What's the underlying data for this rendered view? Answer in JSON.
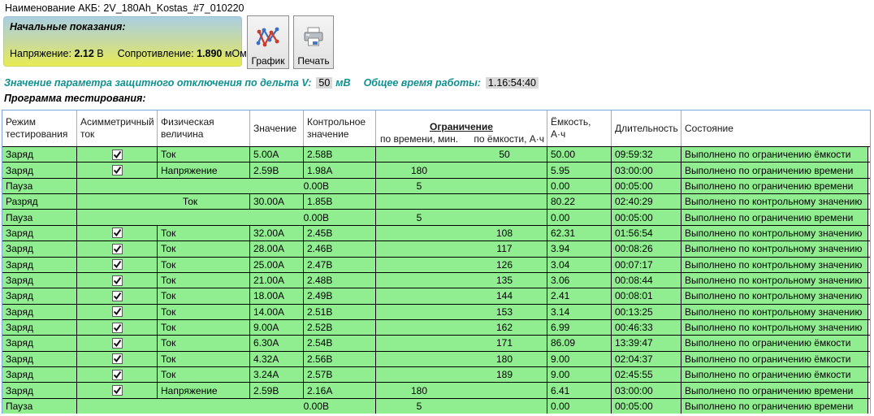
{
  "header": {
    "battery_label": "Наименование АКБ:",
    "battery_name": "2V_180Ah_Kostas_#7_010220"
  },
  "initial_panel": {
    "title": "Начальные показания:",
    "voltage_label": "Напряжение:",
    "voltage_value": "2.12",
    "voltage_unit": "В",
    "resistance_label": "Сопротивление:",
    "resistance_value": "1.890",
    "resistance_unit": "мОм"
  },
  "toolbar": {
    "graph_label": "График",
    "print_label": "Печать"
  },
  "params": {
    "delta_label": "Значение параметра защитного отключения по дельта V:",
    "delta_value": "50",
    "delta_unit": "мВ",
    "total_time_label": "Общее время работы:",
    "total_time_value": "1.16:54:40"
  },
  "program": {
    "title": "Программа тестирования:",
    "columns": {
      "mode": "Режим тестирования",
      "asym": "Асимметричный ток",
      "phys": "Физическая величина",
      "value": "Значение",
      "control": "Контрольное значение",
      "limit_group": "Ограничение",
      "limit_time": "по времени, мин.",
      "limit_cap": "по ёмкости, А·ч",
      "capacity": "Ёмкость, А·ч",
      "duration": "Длительность",
      "status": "Состояние"
    },
    "rows": [
      {
        "type": "charge",
        "mode": "Заряд",
        "asym": true,
        "phys": "Ток",
        "value": "5.00А",
        "control": "2.58В",
        "limit_time": "",
        "limit_cap": "50",
        "capacity": "50.00",
        "duration": "09:59:32",
        "status": "Выполнено по ограничению ёмкости"
      },
      {
        "type": "charge",
        "mode": "Заряд",
        "asym": true,
        "phys": "Напряжение",
        "value": "2.59В",
        "control": "1.98А",
        "limit_time": "180",
        "limit_cap": "",
        "capacity": "5.95",
        "duration": "03:00:00",
        "status": "Выполнено по ограничению времени"
      },
      {
        "type": "pause",
        "mode": "Пауза",
        "control": "0.00В",
        "limit_time": "5",
        "limit_cap": "",
        "capacity": "0.00",
        "duration": "00:05:00",
        "status": "Выполнено по ограничению времени"
      },
      {
        "type": "discharge",
        "mode": "Разряд",
        "phys": "Ток",
        "value": "30.00А",
        "control": "1.85В",
        "limit_time": "",
        "limit_cap": "",
        "capacity": "80.22",
        "duration": "02:40:29",
        "status": "Выполнено по контрольному значению"
      },
      {
        "type": "pause",
        "mode": "Пауза",
        "control": "0.00В",
        "limit_time": "5",
        "limit_cap": "",
        "capacity": "0.00",
        "duration": "00:05:00",
        "status": "Выполнено по ограничению времени"
      },
      {
        "type": "charge",
        "mode": "Заряд",
        "asym": true,
        "phys": "Ток",
        "value": "32.00А",
        "control": "2.45В",
        "limit_time": "",
        "limit_cap": "108",
        "capacity": "62.31",
        "duration": "01:56:54",
        "status": "Выполнено по контрольному значению"
      },
      {
        "type": "charge",
        "mode": "Заряд",
        "asym": true,
        "phys": "Ток",
        "value": "28.00А",
        "control": "2.46В",
        "limit_time": "",
        "limit_cap": "117",
        "capacity": "3.94",
        "duration": "00:08:26",
        "status": "Выполнено по контрольному значению"
      },
      {
        "type": "charge",
        "mode": "Заряд",
        "asym": true,
        "phys": "Ток",
        "value": "25.00А",
        "control": "2.47В",
        "limit_time": "",
        "limit_cap": "126",
        "capacity": "3.04",
        "duration": "00:07:17",
        "status": "Выполнено по контрольному значению"
      },
      {
        "type": "charge",
        "mode": "Заряд",
        "asym": true,
        "phys": "Ток",
        "value": "21.00А",
        "control": "2.48В",
        "limit_time": "",
        "limit_cap": "135",
        "capacity": "3.06",
        "duration": "00:08:44",
        "status": "Выполнено по контрольному значению"
      },
      {
        "type": "charge",
        "mode": "Заряд",
        "asym": true,
        "phys": "Ток",
        "value": "18.00А",
        "control": "2.49В",
        "limit_time": "",
        "limit_cap": "144",
        "capacity": "2.41",
        "duration": "00:08:01",
        "status": "Выполнено по контрольному значению"
      },
      {
        "type": "charge",
        "mode": "Заряд",
        "asym": true,
        "phys": "Ток",
        "value": "14.00А",
        "control": "2.51В",
        "limit_time": "",
        "limit_cap": "153",
        "capacity": "3.14",
        "duration": "00:13:25",
        "status": "Выполнено по контрольному значению"
      },
      {
        "type": "charge",
        "mode": "Заряд",
        "asym": true,
        "phys": "Ток",
        "value": "9.00А",
        "control": "2.52В",
        "limit_time": "",
        "limit_cap": "162",
        "capacity": "6.99",
        "duration": "00:46:33",
        "status": "Выполнено по контрольному значению"
      },
      {
        "type": "charge",
        "mode": "Заряд",
        "asym": true,
        "phys": "Ток",
        "value": "6.30А",
        "control": "2.54В",
        "limit_time": "",
        "limit_cap": "171",
        "capacity": "86.09",
        "duration": "13:39:47",
        "status": "Выполнено по ограничению ёмкости"
      },
      {
        "type": "charge",
        "mode": "Заряд",
        "asym": true,
        "phys": "Ток",
        "value": "4.32А",
        "control": "2.56В",
        "limit_time": "",
        "limit_cap": "180",
        "capacity": "9.00",
        "duration": "02:04:37",
        "status": "Выполнено по ограничению ёмкости"
      },
      {
        "type": "charge",
        "mode": "Заряд",
        "asym": true,
        "phys": "Ток",
        "value": "3.24А",
        "control": "2.57В",
        "limit_time": "",
        "limit_cap": "189",
        "capacity": "9.00",
        "duration": "02:45:55",
        "status": "Выполнено по ограничению ёмкости"
      },
      {
        "type": "charge",
        "mode": "Заряд",
        "asym": true,
        "phys": "Напряжение",
        "value": "2.59В",
        "control": "2.16А",
        "limit_time": "180",
        "limit_cap": "",
        "capacity": "6.41",
        "duration": "03:00:00",
        "status": "Выполнено по ограничению времени"
      },
      {
        "type": "pause",
        "mode": "Пауза",
        "control": "0.00В",
        "limit_time": "5",
        "limit_cap": "",
        "capacity": "0.00",
        "duration": "00:05:00",
        "status": "Выполнено по ограничению времени"
      }
    ]
  },
  "colors": {
    "row_green": "#90ee90",
    "grid_line": "#000000",
    "container_border": "#7aa7d8",
    "teal_label": "#119090",
    "chip_bg": "#d9d9d9",
    "panel_gradient_top": "#aacfe3",
    "panel_gradient_bottom": "#e9ec50"
  }
}
